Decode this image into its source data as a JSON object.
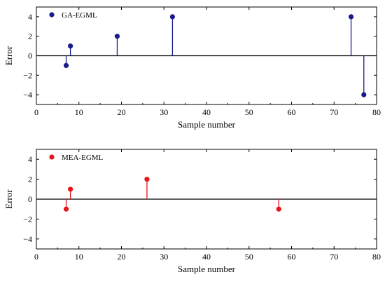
{
  "chart_data": [
    {
      "type": "stem",
      "series": [
        {
          "name": "GA-EGML",
          "color": "#1a1a8c",
          "points": [
            [
              7,
              -1
            ],
            [
              8,
              1
            ],
            [
              19,
              2
            ],
            [
              32,
              4
            ],
            [
              74,
              4
            ],
            [
              77,
              -4
            ]
          ]
        }
      ],
      "xlabel": "Sample number",
      "ylabel": "Error",
      "xlim": [
        0,
        80
      ],
      "ylim": [
        -5,
        5
      ],
      "xticks": [
        0,
        10,
        20,
        30,
        40,
        50,
        60,
        70,
        80
      ],
      "yticks": [
        -4,
        -2,
        0,
        2,
        4
      ],
      "baseline": 0,
      "legend": "top-left",
      "grid": false
    },
    {
      "type": "stem",
      "series": [
        {
          "name": "MEA-EGML",
          "color": "#e8141a",
          "points": [
            [
              7,
              -1
            ],
            [
              8,
              1
            ],
            [
              26,
              2
            ],
            [
              57,
              -1
            ]
          ]
        }
      ],
      "xlabel": "Sample number",
      "ylabel": "Error",
      "xlim": [
        0,
        80
      ],
      "ylim": [
        -5,
        5
      ],
      "xticks": [
        0,
        10,
        20,
        30,
        40,
        50,
        60,
        70,
        80
      ],
      "yticks": [
        -4,
        -2,
        0,
        2,
        4
      ],
      "baseline": 0,
      "legend": "top-left",
      "grid": false
    }
  ]
}
